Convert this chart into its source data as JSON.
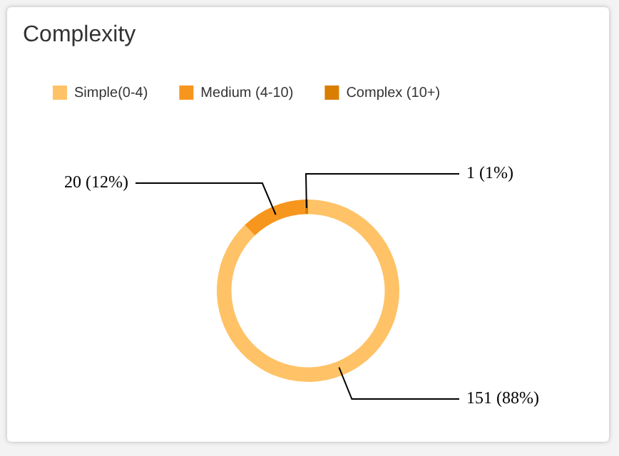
{
  "chart_data": {
    "type": "donut",
    "title": "Complexity",
    "categories": [
      "Simple(0-4)",
      "Medium (4-10)",
      "Complex (10+)"
    ],
    "values": [
      151,
      20,
      1
    ],
    "colors": [
      "#ffc266",
      "#f7961d",
      "#d97e00"
    ],
    "value_labels": [
      "151 (88%)",
      "20 (12%)",
      "1 (1%)"
    ],
    "legend": "top left"
  }
}
